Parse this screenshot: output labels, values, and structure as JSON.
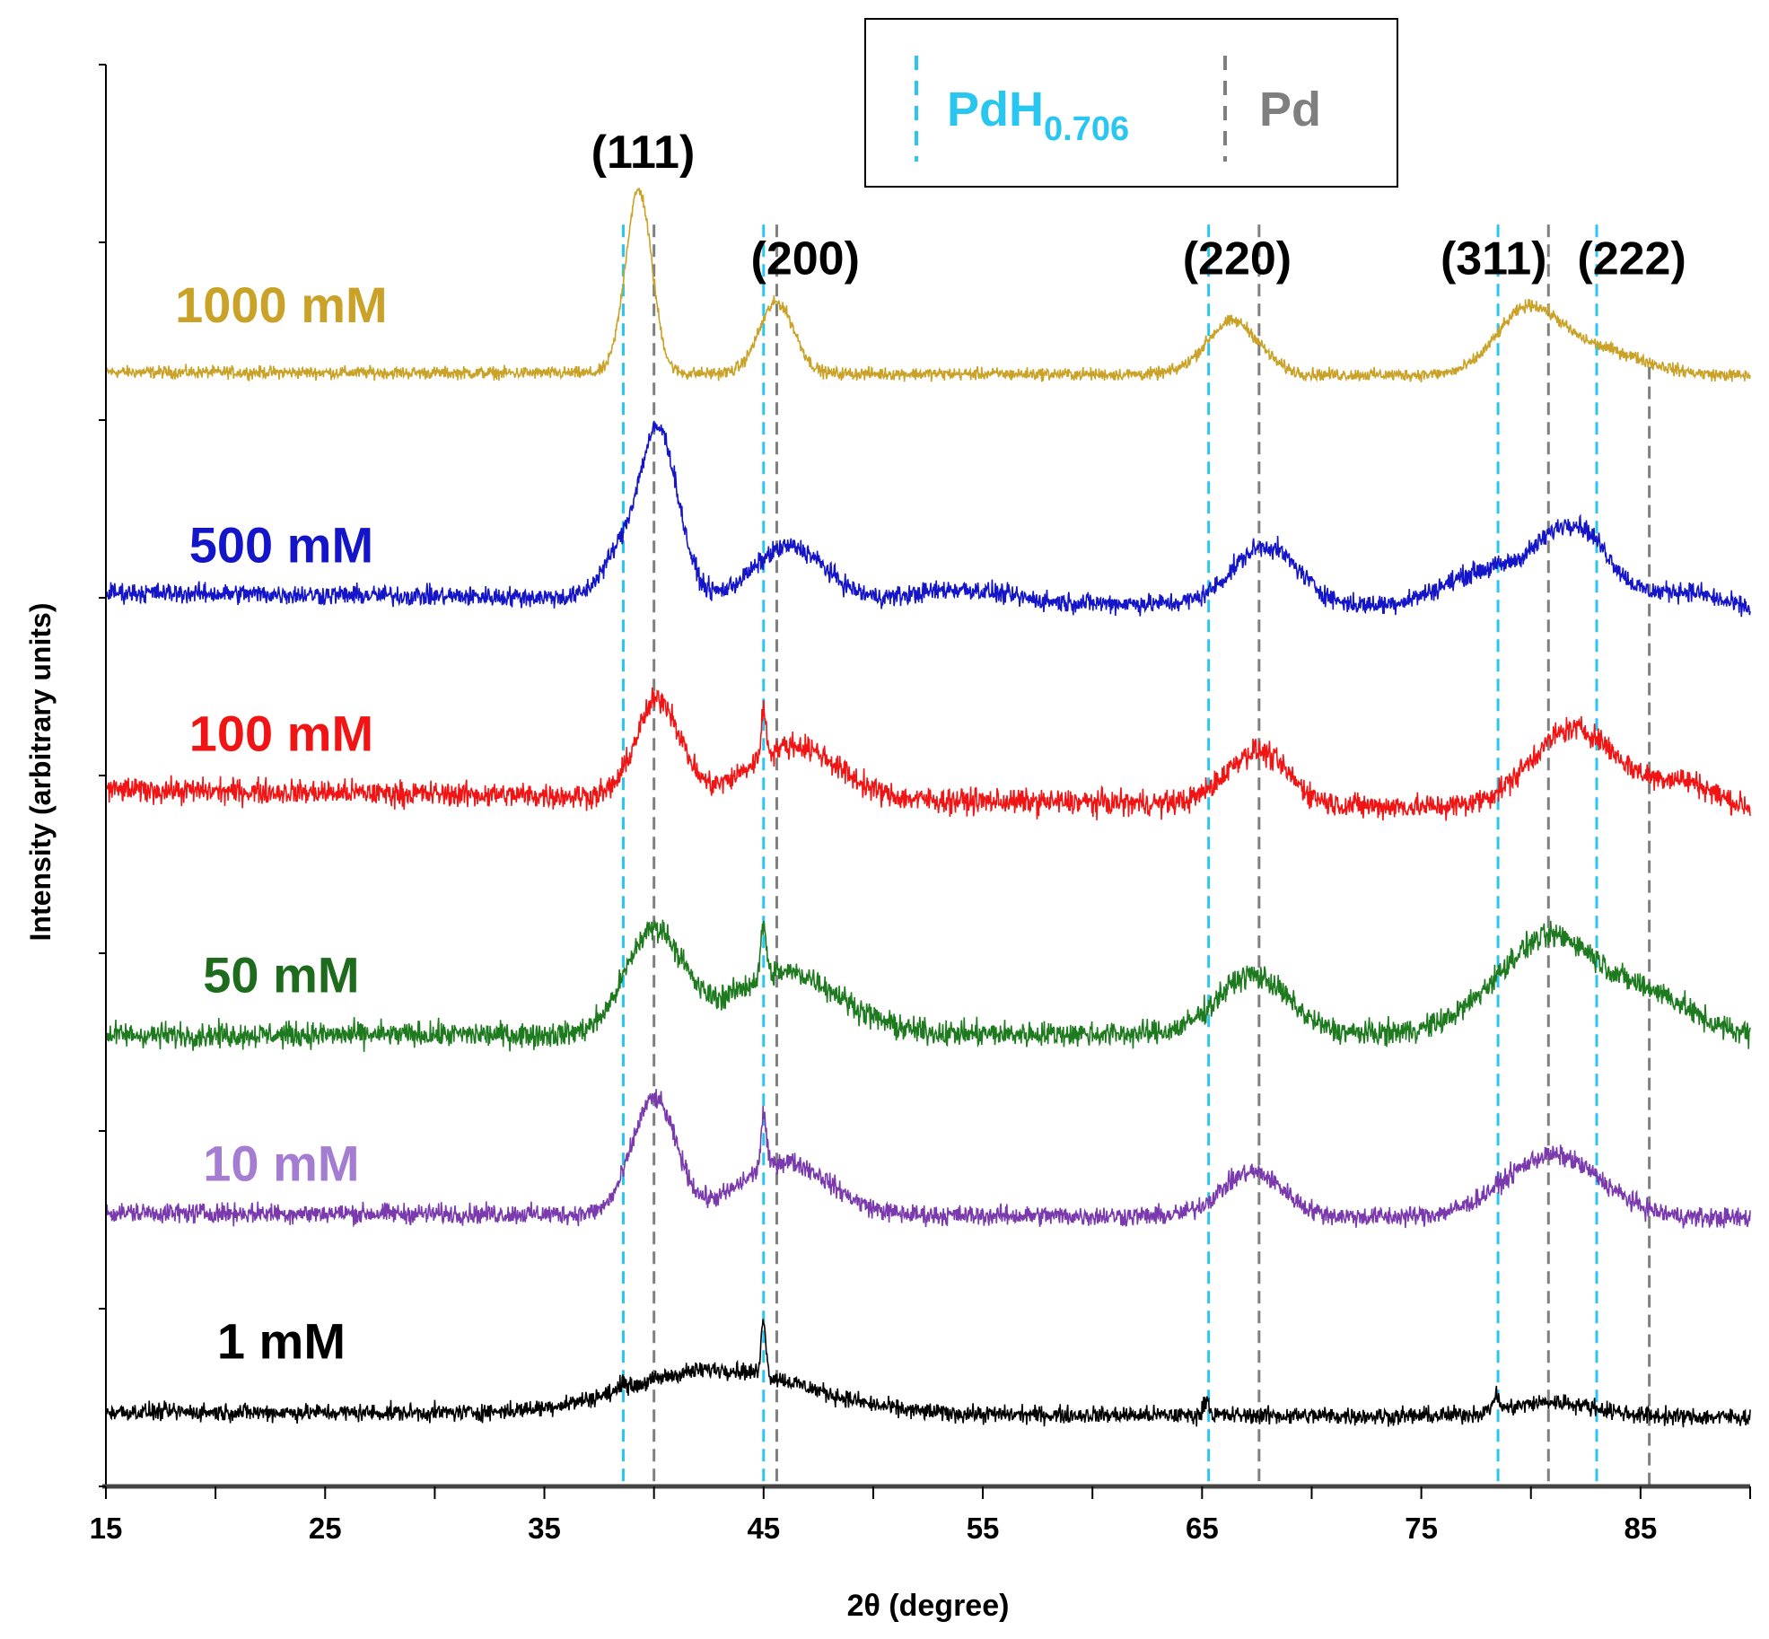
{
  "chart_data": {
    "type": "line",
    "title": "",
    "xlabel": "2θ  (degree)",
    "ylabel": "Intensity (arbitrary units)",
    "xlim": [
      15,
      90
    ],
    "ylim": [
      0,
      8
    ],
    "x_ticks": [
      15,
      25,
      35,
      45,
      55,
      65,
      75,
      85
    ],
    "y_tick_count": 9,
    "grid": false,
    "legend": {
      "placement": "top-center",
      "entries": [
        {
          "label": "PdH",
          "subscript": "0.706",
          "color": "#29C6F0",
          "style": "dashed"
        },
        {
          "label": "Pd",
          "subscript": "",
          "color": "#7F7F7F",
          "style": "dashed"
        }
      ]
    },
    "reference_lines": {
      "PdH0.706": [
        38.6,
        45.0,
        65.3,
        78.5,
        83.0
      ],
      "Pd": [
        40.0,
        45.6,
        67.6,
        80.8,
        85.4
      ]
    },
    "peak_labels": [
      {
        "text": "(111)",
        "x": 39.5,
        "y": 7.42
      },
      {
        "text": "(200)",
        "x": 46.9,
        "y": 6.82
      },
      {
        "text": "(220)",
        "x": 66.6,
        "y": 6.82
      },
      {
        "text": "(311)",
        "x": 78.3,
        "y": 6.82
      },
      {
        "text": "(222)",
        "x": 84.6,
        "y": 6.82
      }
    ],
    "series": [
      {
        "name": "1000 mM",
        "color": "#C9A227",
        "label_color": "#C9A227",
        "label_x": 23,
        "label_y": 6.55,
        "baseline": [
          6.27,
          6.25
        ],
        "noise": 0.025,
        "peaks": [
          [
            39.3,
            1.03,
            0.6
          ],
          [
            45.6,
            0.4,
            0.8
          ],
          [
            66.4,
            0.3,
            1.2
          ],
          [
            79.8,
            0.33,
            1.4
          ],
          [
            82.8,
            0.15,
            2.2
          ]
        ]
      },
      {
        "name": "500 mM",
        "color": "#1414C8",
        "label_color": "#1414C8",
        "label_x": 23,
        "label_y": 5.2,
        "baseline": [
          5.03,
          4.93
        ],
        "noise": 0.04,
        "peaks": [
          [
            40.2,
            0.95,
            0.9
          ],
          [
            38.3,
            0.2,
            0.8
          ],
          [
            46.2,
            0.3,
            1.6
          ],
          [
            54,
            0.07,
            2
          ],
          [
            67.9,
            0.33,
            1.5
          ],
          [
            78,
            0.2,
            2
          ],
          [
            82,
            0.45,
            1.6
          ],
          [
            87,
            0.1,
            1.5
          ]
        ]
      },
      {
        "name": "100 mM",
        "color": "#F01414",
        "label_color": "#F01414",
        "label_x": 23,
        "label_y": 4.14,
        "baseline": [
          3.92,
          3.8
        ],
        "noise": 0.05,
        "peaks": [
          [
            40.2,
            0.55,
            1.0
          ],
          [
            45.0,
            0.25,
            0.12
          ],
          [
            46.4,
            0.3,
            2.0
          ],
          [
            67.5,
            0.3,
            1.4
          ],
          [
            82,
            0.45,
            2.0
          ],
          [
            87,
            0.15,
            1.5
          ]
        ]
      },
      {
        "name": "50 mM",
        "color": "#1E7A1E",
        "label_color": "#1E6B1E",
        "label_x": 23,
        "label_y": 2.78,
        "baseline": [
          2.54,
          2.55
        ],
        "noise": 0.05,
        "peaks": [
          [
            40.0,
            0.58,
            1.3
          ],
          [
            45.0,
            0.3,
            0.12
          ],
          [
            46.0,
            0.35,
            2.5
          ],
          [
            67.3,
            0.33,
            1.6
          ],
          [
            81,
            0.55,
            2.5
          ],
          [
            86,
            0.15,
            1.5
          ]
        ]
      },
      {
        "name": "10 mM",
        "color": "#7A3AAE",
        "label_color": "#A47CD2",
        "label_x": 23,
        "label_y": 1.72,
        "baseline": [
          1.54,
          1.51
        ],
        "noise": 0.04,
        "peaks": [
          [
            40.0,
            0.65,
            1.0
          ],
          [
            45.0,
            0.3,
            0.12
          ],
          [
            46.0,
            0.3,
            2.0
          ],
          [
            67.3,
            0.25,
            1.4
          ],
          [
            81,
            0.35,
            2.2
          ]
        ]
      },
      {
        "name": "1 mM",
        "color": "#000000",
        "label_color": "#000000",
        "label_x": 23,
        "label_y": 0.72,
        "baseline": [
          0.42,
          0.39
        ],
        "noise": 0.035,
        "peaks": [
          [
            43,
            0.25,
            4
          ],
          [
            45.0,
            0.33,
            0.1
          ],
          [
            38.6,
            0.06,
            0.12
          ],
          [
            65.2,
            0.1,
            0.12
          ],
          [
            78.4,
            0.08,
            0.15
          ],
          [
            81,
            0.08,
            2
          ]
        ]
      }
    ]
  }
}
